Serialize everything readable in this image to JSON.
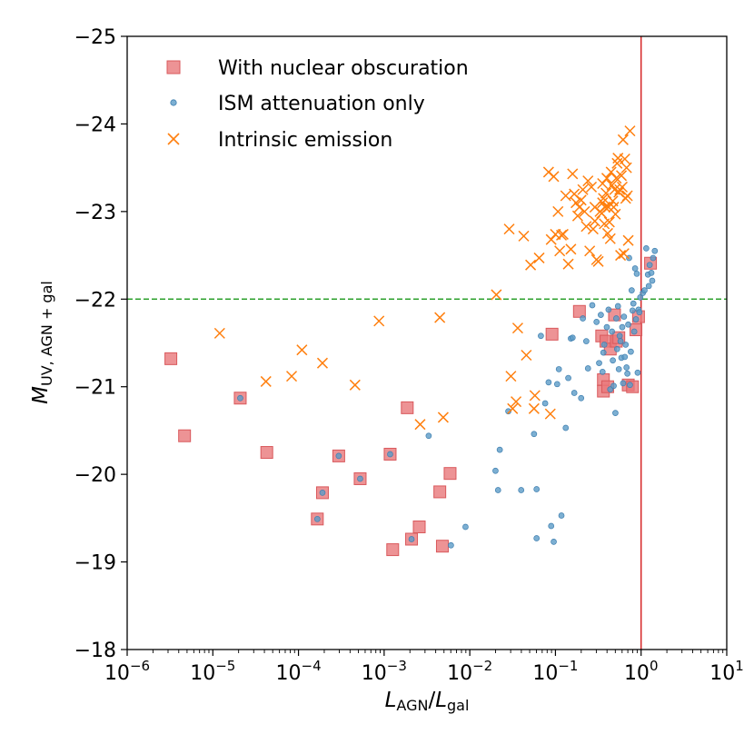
{
  "chart_data": {
    "type": "scatter",
    "title": "",
    "xlabel": {
      "main": "L",
      "sub1": "AGN",
      "sep": "/",
      "main2": "L",
      "sub2": "gal"
    },
    "ylabel": {
      "main": "M",
      "sub": "UV, AGN + gal"
    },
    "xscale": "log",
    "xlim_log10": [
      -6,
      1
    ],
    "ylim": [
      -18,
      -25
    ],
    "x_ticks": [
      {
        "exp": -6,
        "base": "10",
        "sup": "−6"
      },
      {
        "exp": -5,
        "base": "10",
        "sup": "−5"
      },
      {
        "exp": -4,
        "base": "10",
        "sup": "−4"
      },
      {
        "exp": -3,
        "base": "10",
        "sup": "−3"
      },
      {
        "exp": -2,
        "base": "10",
        "sup": "−2"
      },
      {
        "exp": -1,
        "base": "10",
        "sup": "−1"
      },
      {
        "exp": 0,
        "base": "10",
        "sup": "0"
      },
      {
        "exp": 1,
        "base": "10",
        "sup": "1"
      }
    ],
    "y_ticks": [
      {
        "value": -25,
        "label": "−25"
      },
      {
        "value": -24,
        "label": "−24"
      },
      {
        "value": -23,
        "label": "−23"
      },
      {
        "value": -22,
        "label": "−22"
      },
      {
        "value": -21,
        "label": "−21"
      },
      {
        "value": -20,
        "label": "−20"
      },
      {
        "value": -19,
        "label": "−19"
      },
      {
        "value": -18,
        "label": "−18"
      }
    ],
    "reference_lines": [
      {
        "orientation": "horizontal",
        "value": -22,
        "style": "dashed",
        "color": "#2ca02c"
      },
      {
        "orientation": "vertical",
        "log10_value": 0,
        "style": "solid",
        "color": "#d62728"
      }
    ],
    "legend": {
      "position": "top-left",
      "entries": [
        "With nuclear obscuration",
        "ISM attenuation only",
        "Intrinsic emission"
      ]
    },
    "series": [
      {
        "name": "With nuclear obscuration",
        "marker": "square",
        "color": "#e8787a",
        "edge": "#d9595c",
        "points": [
          [
            -5.49,
            -21.32
          ],
          [
            -5.33,
            -20.44
          ],
          [
            -4.68,
            -20.87
          ],
          [
            -4.37,
            -20.25
          ],
          [
            -3.78,
            -19.49
          ],
          [
            -3.72,
            -19.79
          ],
          [
            -3.53,
            -20.21
          ],
          [
            -3.28,
            -19.95
          ],
          [
            -2.93,
            -20.23
          ],
          [
            -2.9,
            -19.14
          ],
          [
            -2.73,
            -20.76
          ],
          [
            -2.68,
            -19.26
          ],
          [
            -2.59,
            -19.4
          ],
          [
            -2.35,
            -19.8
          ],
          [
            -2.32,
            -19.18
          ],
          [
            -2.23,
            -20.01
          ],
          [
            -1.04,
            -21.6
          ],
          [
            -0.72,
            -21.86
          ],
          [
            -0.46,
            -21.58
          ],
          [
            -0.44,
            -21.08
          ],
          [
            -0.44,
            -20.95
          ],
          [
            -0.41,
            -21.52
          ],
          [
            -0.39,
            -21.0
          ],
          [
            -0.36,
            -21.43
          ],
          [
            -0.31,
            -21.82
          ],
          [
            -0.29,
            -21.52
          ],
          [
            -0.26,
            -21.56
          ],
          [
            -0.15,
            -21.02
          ],
          [
            -0.1,
            -21.0
          ],
          [
            -0.06,
            -21.65
          ],
          [
            -0.03,
            -21.8
          ],
          [
            0.11,
            -22.41
          ]
        ]
      },
      {
        "name": "ISM attenuation only",
        "marker": "circle",
        "color": "#5b9bc7",
        "edge": "#3f7fb0",
        "points": [
          [
            -4.68,
            -20.87
          ],
          [
            -3.78,
            -19.49
          ],
          [
            -3.72,
            -19.79
          ],
          [
            -3.53,
            -20.21
          ],
          [
            -3.28,
            -19.95
          ],
          [
            -2.93,
            -20.23
          ],
          [
            -2.68,
            -19.26
          ],
          [
            -2.48,
            -20.44
          ],
          [
            -2.22,
            -19.19
          ],
          [
            -2.05,
            -19.4
          ],
          [
            -1.7,
            -20.04
          ],
          [
            -1.67,
            -19.82
          ],
          [
            -1.65,
            -20.28
          ],
          [
            -1.55,
            -20.72
          ],
          [
            -1.4,
            -19.82
          ],
          [
            -1.25,
            -20.46
          ],
          [
            -1.22,
            -19.27
          ],
          [
            -1.22,
            -19.83
          ],
          [
            -1.17,
            -21.58
          ],
          [
            -1.12,
            -20.81
          ],
          [
            -1.08,
            -21.05
          ],
          [
            -1.05,
            -19.41
          ],
          [
            -1.02,
            -19.23
          ],
          [
            -0.98,
            -21.03
          ],
          [
            -0.96,
            -21.2
          ],
          [
            -0.93,
            -19.53
          ],
          [
            -0.88,
            -20.53
          ],
          [
            -0.85,
            -21.1
          ],
          [
            -0.82,
            -21.55
          ],
          [
            -0.8,
            -21.56
          ],
          [
            -0.78,
            -20.93
          ],
          [
            -0.7,
            -20.87
          ],
          [
            -0.68,
            -21.78
          ],
          [
            -0.64,
            -21.52
          ],
          [
            -0.62,
            -21.21
          ],
          [
            -0.57,
            -21.93
          ],
          [
            -0.52,
            -21.74
          ],
          [
            -0.49,
            -21.27
          ],
          [
            -0.47,
            -21.82
          ],
          [
            -0.45,
            -21.17
          ],
          [
            -0.44,
            -21.39
          ],
          [
            -0.43,
            -21.48
          ],
          [
            -0.4,
            -21.68
          ],
          [
            -0.38,
            -21.88
          ],
          [
            -0.36,
            -20.97
          ],
          [
            -0.34,
            -21.63
          ],
          [
            -0.33,
            -21.3
          ],
          [
            -0.32,
            -21.01
          ],
          [
            -0.3,
            -20.7
          ],
          [
            -0.29,
            -21.78
          ],
          [
            -0.28,
            -21.43
          ],
          [
            -0.27,
            -21.92
          ],
          [
            -0.26,
            -21.2
          ],
          [
            -0.25,
            -21.58
          ],
          [
            -0.24,
            -21.52
          ],
          [
            -0.23,
            -21.33
          ],
          [
            -0.22,
            -21.68
          ],
          [
            -0.21,
            -21.04
          ],
          [
            -0.2,
            -21.8
          ],
          [
            -0.19,
            -21.34
          ],
          [
            -0.18,
            -21.48
          ],
          [
            -0.17,
            -21.22
          ],
          [
            -0.16,
            -21.15
          ],
          [
            -0.15,
            -21.71
          ],
          [
            -0.14,
            -22.47
          ],
          [
            -0.13,
            -21.02
          ],
          [
            -0.12,
            -21.4
          ],
          [
            -0.11,
            -22.1
          ],
          [
            -0.1,
            -21.87
          ],
          [
            -0.09,
            -21.95
          ],
          [
            -0.08,
            -21.63
          ],
          [
            -0.07,
            -22.35
          ],
          [
            -0.06,
            -21.77
          ],
          [
            -0.05,
            -22.29
          ],
          [
            -0.04,
            -21.16
          ],
          [
            -0.03,
            -21.88
          ],
          [
            -0.02,
            -21.85
          ],
          [
            -0.01,
            -22.02
          ],
          [
            0.02,
            -22.07
          ],
          [
            0.04,
            -22.1
          ],
          [
            0.06,
            -22.58
          ],
          [
            0.08,
            -22.28
          ],
          [
            0.1,
            -22.39
          ],
          [
            0.12,
            -22.3
          ],
          [
            0.14,
            -22.47
          ],
          [
            0.16,
            -22.55
          ],
          [
            0.13,
            -22.21
          ],
          [
            0.09,
            -22.15
          ]
        ]
      },
      {
        "name": "Intrinsic emission",
        "marker": "x",
        "color": "#ff7f0e",
        "points": [
          [
            -4.92,
            -21.61
          ],
          [
            -4.38,
            -21.06
          ],
          [
            -4.08,
            -21.12
          ],
          [
            -3.96,
            -21.42
          ],
          [
            -3.72,
            -21.27
          ],
          [
            -3.34,
            -21.02
          ],
          [
            -3.06,
            -21.75
          ],
          [
            -2.58,
            -20.57
          ],
          [
            -2.35,
            -21.79
          ],
          [
            -2.31,
            -20.65
          ],
          [
            -1.69,
            -22.05
          ],
          [
            -1.54,
            -22.8
          ],
          [
            -1.52,
            -21.12
          ],
          [
            -1.5,
            -20.75
          ],
          [
            -1.46,
            -20.83
          ],
          [
            -1.44,
            -21.67
          ],
          [
            -1.37,
            -22.72
          ],
          [
            -1.34,
            -21.36
          ],
          [
            -1.29,
            -22.39
          ],
          [
            -1.25,
            -20.75
          ],
          [
            -1.24,
            -20.9
          ],
          [
            -1.19,
            -22.47
          ],
          [
            -1.08,
            -23.45
          ],
          [
            -1.06,
            -20.69
          ],
          [
            -1.05,
            -22.68
          ],
          [
            -1.02,
            -23.4
          ],
          [
            -1.0,
            -22.74
          ],
          [
            -0.97,
            -23.0
          ],
          [
            -0.95,
            -22.55
          ],
          [
            -0.93,
            -22.73
          ],
          [
            -0.91,
            -22.74
          ],
          [
            -0.88,
            -23.18
          ],
          [
            -0.85,
            -22.4
          ],
          [
            -0.82,
            -22.57
          ],
          [
            -0.8,
            -23.43
          ],
          [
            -0.78,
            -23.2
          ],
          [
            -0.76,
            -23.1
          ],
          [
            -0.74,
            -22.95
          ],
          [
            -0.72,
            -23.05
          ],
          [
            -0.7,
            -23.13
          ],
          [
            -0.68,
            -23.25
          ],
          [
            -0.66,
            -23.0
          ],
          [
            -0.64,
            -22.83
          ],
          [
            -0.62,
            -23.35
          ],
          [
            -0.6,
            -22.55
          ],
          [
            -0.58,
            -23.28
          ],
          [
            -0.56,
            -22.8
          ],
          [
            -0.54,
            -22.89
          ],
          [
            -0.52,
            -22.45
          ],
          [
            -0.5,
            -22.43
          ],
          [
            -0.48,
            -23.0
          ],
          [
            -0.46,
            -22.98
          ],
          [
            -0.45,
            -23.1
          ],
          [
            -0.44,
            -23.15
          ],
          [
            -0.43,
            -22.86
          ],
          [
            -0.42,
            -23.05
          ],
          [
            -0.41,
            -23.21
          ],
          [
            -0.4,
            -23.38
          ],
          [
            -0.39,
            -22.75
          ],
          [
            -0.38,
            -23.05
          ],
          [
            -0.37,
            -22.88
          ],
          [
            -0.36,
            -22.69
          ],
          [
            -0.35,
            -23.45
          ],
          [
            -0.34,
            -23.3
          ],
          [
            -0.33,
            -23.12
          ],
          [
            -0.32,
            -23.05
          ],
          [
            -0.31,
            -23.25
          ],
          [
            -0.3,
            -22.97
          ],
          [
            -0.29,
            -23.38
          ],
          [
            -0.28,
            -23.55
          ],
          [
            -0.27,
            -23.61
          ],
          [
            -0.26,
            -23.22
          ],
          [
            -0.25,
            -23.25
          ],
          [
            -0.24,
            -22.5
          ],
          [
            -0.23,
            -23.41
          ],
          [
            -0.22,
            -23.28
          ],
          [
            -0.21,
            -23.82
          ],
          [
            -0.2,
            -22.52
          ],
          [
            -0.19,
            -23.6
          ],
          [
            -0.18,
            -23.15
          ],
          [
            -0.17,
            -23.5
          ],
          [
            -0.16,
            -23.18
          ],
          [
            -0.15,
            -22.67
          ],
          [
            -0.13,
            -23.92
          ],
          [
            -0.45,
            -23.32
          ],
          [
            -0.54,
            -23.05
          ]
        ]
      }
    ]
  }
}
